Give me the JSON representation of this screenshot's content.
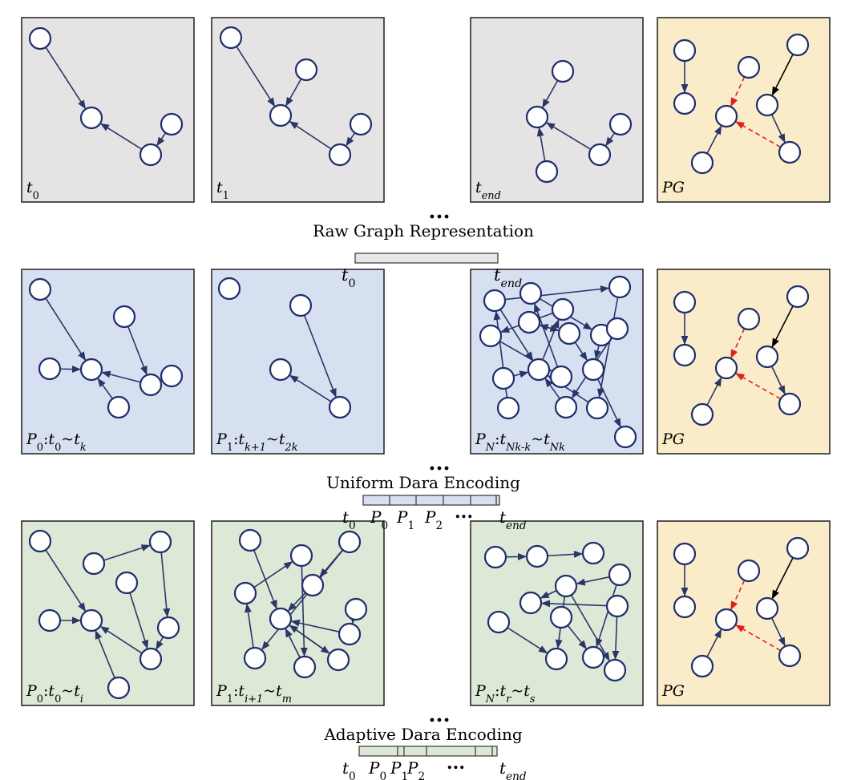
{
  "colors": {
    "raw_panel": "#e6e3e4",
    "uniform_panel": "#d7e0f1",
    "adaptive_panel": "#dde9d6",
    "pg_panel": "#fbecc9",
    "node_stroke": "#1f2e6b",
    "edge": "#2a3568",
    "red_edge": "#e02020",
    "frame": "#2b2b2b"
  },
  "ellipsis": "...",
  "rows": [
    {
      "id": "raw",
      "title": "Raw Graph Representation",
      "panels": [
        {
          "label": "t_0",
          "html": "<tspan class='ital'>t</tspan><tspan baseline-shift='sub' font-size='13'>0</tspan>"
        },
        {
          "label": "t_1",
          "html": "<tspan class='ital'>t</tspan><tspan baseline-shift='sub' font-size='13'>1</tspan>"
        },
        {
          "label": "t_end",
          "html": "<tspan class='ital'>t</tspan><tspan baseline-shift='sub' font-size='13' class='ital'>end</tspan>"
        },
        {
          "label": "PG",
          "html": "<tspan class='ital'>PG</tspan>"
        }
      ],
      "bar_labels": [
        "t_0",
        "t_end"
      ]
    },
    {
      "id": "uniform",
      "title": "Uniform Dara Encoding",
      "panels": [
        {
          "label": "P_0: t_0~t_k"
        },
        {
          "label": "P_1: t_k+1~t_2k"
        },
        {
          "label": "P_N: t_Nk-k~t_Nk"
        },
        {
          "label": "PG"
        }
      ],
      "bar_labels": [
        "t_0",
        "P_0",
        "P_1",
        "P_2",
        "...",
        "t_end"
      ]
    },
    {
      "id": "adaptive",
      "title": "Adaptive Dara Encoding",
      "panels": [
        {
          "label": "P_0: t_0~t_i"
        },
        {
          "label": "P_1: t_i+1~t_m"
        },
        {
          "label": "P_N: t_r~t_s"
        },
        {
          "label": "PG"
        }
      ],
      "bar_labels": [
        "t_0",
        "P_0",
        "P_1",
        "P_2",
        "...",
        "t_end"
      ]
    }
  ]
}
